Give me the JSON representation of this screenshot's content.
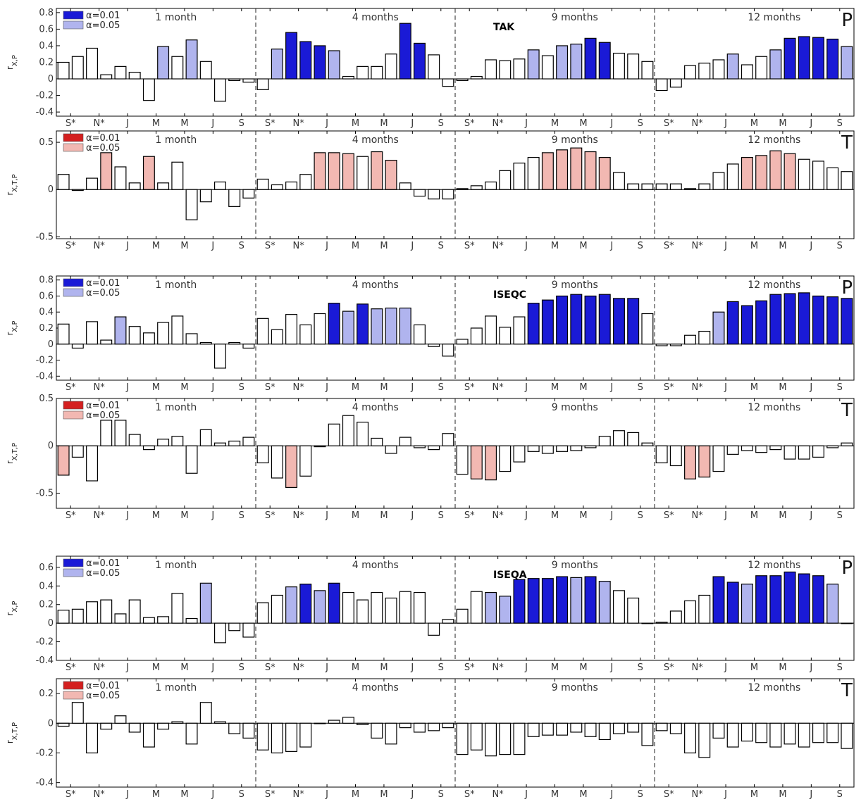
{
  "colors": {
    "blue_001": "#1a1ad6",
    "blue_005": "#b0b4ee",
    "red_001": "#d42020",
    "red_005": "#f2b8b2",
    "plain": "#ffffff"
  },
  "legend_labels": [
    "α=0.01",
    "α=0.05"
  ],
  "periods": [
    "1 month",
    "4 months",
    "9 months",
    "12 months"
  ],
  "month_ticks": [
    "S*",
    "N*",
    "J",
    "M",
    "M",
    "J",
    "S"
  ],
  "chart_data": [
    {
      "type": "bar",
      "site": "TAK",
      "variable": "P",
      "ylabel": "r_X,P",
      "ylim": [
        -0.45,
        0.85
      ],
      "yticks": [
        -0.4,
        -0.2,
        0,
        0.2,
        0.4,
        0.6,
        0.8
      ],
      "values": [
        [
          0.2,
          0.27,
          0.37,
          0.05,
          0.15,
          0.08,
          -0.26,
          0.39,
          0.27,
          0.47,
          0.21,
          -0.27,
          -0.02,
          -0.04
        ],
        [
          -0.13,
          0.36,
          0.56,
          0.45,
          0.4,
          0.34,
          0.03,
          0.15,
          0.15,
          0.3,
          0.67,
          0.43,
          0.29,
          -0.09
        ],
        [
          -0.02,
          0.03,
          0.23,
          0.22,
          0.24,
          0.35,
          0.28,
          0.4,
          0.42,
          0.49,
          0.44,
          0.31,
          0.3,
          0.21
        ],
        [
          -0.14,
          -0.1,
          0.16,
          0.19,
          0.23,
          0.3,
          0.17,
          0.27,
          0.35,
          0.49,
          0.51,
          0.5,
          0.48,
          0.39
        ]
      ],
      "significance": [
        [
          0,
          0,
          0,
          0,
          0,
          0,
          0,
          2,
          0,
          2,
          0,
          0,
          0,
          0
        ],
        [
          0,
          2,
          1,
          1,
          1,
          2,
          0,
          0,
          0,
          0,
          1,
          1,
          0,
          0
        ],
        [
          0,
          0,
          0,
          0,
          0,
          2,
          0,
          2,
          2,
          1,
          1,
          0,
          0,
          0
        ],
        [
          0,
          0,
          0,
          0,
          0,
          2,
          0,
          0,
          2,
          1,
          1,
          1,
          1,
          2
        ]
      ]
    },
    {
      "type": "bar",
      "site": "",
      "variable": "T",
      "ylabel": "r_X,T,P",
      "ylim": [
        -0.52,
        0.62
      ],
      "yticks": [
        -0.5,
        0,
        0.5
      ],
      "values": [
        [
          0.16,
          -0.01,
          0.12,
          0.39,
          0.24,
          0.07,
          0.35,
          0.07,
          0.29,
          -0.32,
          -0.13,
          0.08,
          -0.18,
          -0.09
        ],
        [
          0.11,
          0.05,
          0.08,
          0.16,
          0.39,
          0.39,
          0.38,
          0.35,
          0.4,
          0.31,
          0.07,
          -0.07,
          -0.1,
          -0.1
        ],
        [
          0.01,
          0.04,
          0.08,
          0.2,
          0.28,
          0.34,
          0.39,
          0.42,
          0.44,
          0.4,
          0.34,
          0.18,
          0.06,
          0.06
        ],
        [
          0.06,
          0.06,
          0.01,
          0.06,
          0.18,
          0.27,
          0.34,
          0.36,
          0.41,
          0.38,
          0.32,
          0.3,
          0.23,
          0.19
        ]
      ],
      "significance": [
        [
          0,
          0,
          0,
          2,
          0,
          0,
          2,
          0,
          0,
          0,
          0,
          0,
          0,
          0
        ],
        [
          0,
          0,
          0,
          0,
          2,
          2,
          2,
          0,
          2,
          2,
          0,
          0,
          0,
          0
        ],
        [
          0,
          0,
          0,
          0,
          0,
          0,
          2,
          2,
          2,
          2,
          2,
          0,
          0,
          0
        ],
        [
          0,
          0,
          0,
          0,
          0,
          0,
          2,
          2,
          2,
          2,
          0,
          0,
          0,
          0
        ]
      ]
    },
    {
      "type": "bar",
      "site": "ISEQC",
      "variable": "P",
      "ylabel": "r_X,P",
      "ylim": [
        -0.45,
        0.85
      ],
      "yticks": [
        -0.4,
        -0.2,
        0,
        0.2,
        0.4,
        0.6,
        0.8
      ],
      "values": [
        [
          0.25,
          -0.05,
          0.28,
          0.05,
          0.34,
          0.22,
          0.14,
          0.27,
          0.35,
          0.13,
          0.02,
          -0.3,
          0.02,
          -0.05
        ],
        [
          0.32,
          0.18,
          0.37,
          0.24,
          0.38,
          0.51,
          0.41,
          0.5,
          0.44,
          0.45,
          0.45,
          0.24,
          -0.03,
          -0.15
        ],
        [
          0.06,
          0.2,
          0.35,
          0.21,
          0.34,
          0.51,
          0.55,
          0.6,
          0.62,
          0.6,
          0.62,
          0.57,
          0.57,
          0.38
        ],
        [
          -0.02,
          -0.02,
          0.11,
          0.16,
          0.4,
          0.53,
          0.48,
          0.54,
          0.62,
          0.63,
          0.64,
          0.6,
          0.59,
          0.57
        ]
      ],
      "significance": [
        [
          0,
          0,
          0,
          0,
          2,
          0,
          0,
          0,
          0,
          0,
          0,
          0,
          0,
          0
        ],
        [
          0,
          0,
          0,
          0,
          0,
          1,
          2,
          1,
          2,
          2,
          2,
          0,
          0,
          0
        ],
        [
          0,
          0,
          0,
          0,
          0,
          1,
          1,
          1,
          1,
          1,
          1,
          1,
          1,
          0
        ],
        [
          0,
          0,
          0,
          0,
          2,
          1,
          1,
          1,
          1,
          1,
          1,
          1,
          1,
          1
        ]
      ]
    },
    {
      "type": "bar",
      "site": "",
      "variable": "T",
      "ylabel": "r_X,T,P",
      "ylim": [
        -0.66,
        0.5
      ],
      "yticks": [
        -0.5,
        0,
        0.5
      ],
      "values": [
        [
          -0.31,
          -0.12,
          -0.37,
          0.27,
          0.27,
          0.12,
          -0.04,
          0.07,
          0.1,
          -0.29,
          0.17,
          0.03,
          0.05,
          0.09
        ],
        [
          -0.18,
          -0.34,
          -0.44,
          -0.32,
          -0.01,
          0.23,
          0.32,
          0.25,
          0.08,
          -0.08,
          0.09,
          -0.02,
          -0.04,
          0.13
        ],
        [
          -0.3,
          -0.35,
          -0.36,
          -0.27,
          -0.17,
          -0.06,
          -0.08,
          -0.06,
          -0.05,
          -0.02,
          0.1,
          0.16,
          0.14,
          0.03
        ],
        [
          -0.18,
          -0.21,
          -0.35,
          -0.33,
          -0.27,
          -0.09,
          -0.05,
          -0.07,
          -0.04,
          -0.14,
          -0.14,
          -0.12,
          -0.02,
          0.03
        ]
      ],
      "significance": [
        [
          2,
          0,
          0,
          0,
          0,
          0,
          0,
          0,
          0,
          0,
          0,
          0,
          0,
          0
        ],
        [
          0,
          0,
          2,
          0,
          0,
          0,
          0,
          0,
          0,
          0,
          0,
          0,
          0,
          0
        ],
        [
          0,
          2,
          2,
          0,
          0,
          0,
          0,
          0,
          0,
          0,
          0,
          0,
          0,
          0
        ],
        [
          0,
          0,
          2,
          2,
          0,
          0,
          0,
          0,
          0,
          0,
          0,
          0,
          0,
          0
        ]
      ]
    },
    {
      "type": "bar",
      "site": "ISEQA",
      "variable": "P",
      "ylabel": "r_X,P",
      "ylim": [
        -0.4,
        0.72
      ],
      "yticks": [
        -0.4,
        -0.2,
        0,
        0.2,
        0.4,
        0.6
      ],
      "values": [
        [
          0.14,
          0.15,
          0.23,
          0.25,
          0.1,
          0.25,
          0.06,
          0.07,
          0.32,
          0.05,
          0.43,
          -0.21,
          -0.08,
          -0.15
        ],
        [
          0.22,
          0.3,
          0.39,
          0.42,
          0.35,
          0.43,
          0.33,
          0.25,
          0.33,
          0.27,
          0.34,
          0.33,
          -0.13,
          0.04
        ],
        [
          0.15,
          0.34,
          0.33,
          0.29,
          0.47,
          0.48,
          0.48,
          0.5,
          0.49,
          0.5,
          0.45,
          0.35,
          0.27,
          0.0
        ],
        [
          0.01,
          0.13,
          0.24,
          0.3,
          0.5,
          0.44,
          0.42,
          0.51,
          0.51,
          0.55,
          0.53,
          0.51,
          0.42,
          0.0
        ]
      ],
      "significance": [
        [
          0,
          0,
          0,
          0,
          0,
          0,
          0,
          0,
          0,
          0,
          2,
          0,
          0,
          0
        ],
        [
          0,
          0,
          2,
          1,
          2,
          1,
          0,
          0,
          0,
          0,
          0,
          0,
          0,
          0
        ],
        [
          0,
          0,
          2,
          2,
          1,
          1,
          1,
          1,
          2,
          1,
          2,
          0,
          0,
          0
        ],
        [
          0,
          0,
          0,
          0,
          1,
          1,
          2,
          1,
          1,
          1,
          1,
          1,
          2,
          0
        ]
      ]
    },
    {
      "type": "bar",
      "site": "",
      "variable": "T",
      "ylabel": "r_X,T,P",
      "ylim": [
        -0.43,
        0.3
      ],
      "yticks": [
        -0.4,
        -0.2,
        0,
        0.2
      ],
      "values": [
        [
          -0.02,
          0.14,
          -0.2,
          -0.04,
          0.05,
          -0.06,
          -0.16,
          -0.04,
          0.01,
          -0.14,
          0.14,
          0.01,
          -0.07,
          -0.1
        ],
        [
          -0.18,
          -0.2,
          -0.19,
          -0.16,
          0.0,
          0.02,
          0.04,
          -0.01,
          -0.1,
          -0.14,
          -0.03,
          -0.06,
          -0.05,
          -0.03
        ],
        [
          -0.21,
          -0.18,
          -0.22,
          -0.21,
          -0.21,
          -0.09,
          -0.08,
          -0.08,
          -0.06,
          -0.09,
          -0.11,
          -0.07,
          -0.06,
          -0.15
        ],
        [
          -0.05,
          -0.07,
          -0.2,
          -0.23,
          -0.1,
          -0.16,
          -0.12,
          -0.13,
          -0.16,
          -0.14,
          -0.16,
          -0.13,
          -0.13,
          -0.17
        ]
      ],
      "significance": [
        [
          0,
          0,
          0,
          0,
          0,
          0,
          0,
          0,
          0,
          0,
          0,
          0,
          0,
          0
        ],
        [
          0,
          0,
          0,
          0,
          0,
          0,
          0,
          0,
          0,
          0,
          0,
          0,
          0,
          0
        ],
        [
          0,
          0,
          0,
          0,
          0,
          0,
          0,
          0,
          0,
          0,
          0,
          0,
          0,
          0
        ],
        [
          0,
          0,
          0,
          0,
          0,
          0,
          0,
          0,
          0,
          0,
          0,
          0,
          0,
          0
        ]
      ]
    }
  ]
}
